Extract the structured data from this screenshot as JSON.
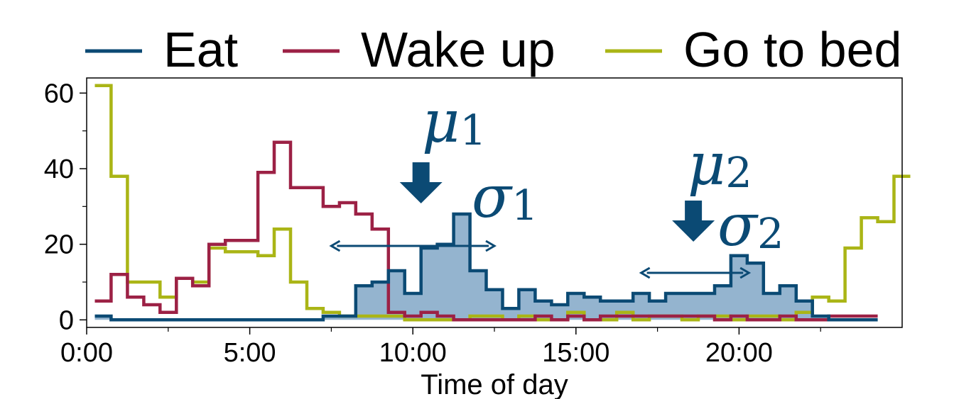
{
  "chart_data": {
    "type": "line",
    "xlabel": "Time of day",
    "ylabel": "",
    "xlim": [
      0,
      25
    ],
    "ylim": [
      -2,
      64
    ],
    "x_ticks": [
      0,
      5,
      10,
      15,
      20
    ],
    "x_tick_labels": [
      "0:00",
      "5:00",
      "10:00",
      "15:00",
      "20:00"
    ],
    "y_ticks": [
      0,
      20,
      40,
      60
    ],
    "y_tick_labels": [
      "0",
      "20",
      "40",
      "60"
    ],
    "grid": false,
    "legend_position": "top",
    "step_width_hours": 0.5,
    "series": [
      {
        "name": "Eat",
        "color": "#0b4a74",
        "fill": "#94b4cf",
        "values": [
          1,
          0,
          0,
          0,
          0,
          0,
          0,
          0,
          0,
          0,
          0,
          0,
          0,
          0,
          1,
          1,
          9,
          10,
          13,
          7,
          19,
          20,
          28,
          13,
          8,
          3,
          8,
          5,
          4,
          7,
          6,
          5,
          5,
          7,
          5,
          7,
          7,
          7,
          9,
          17,
          15,
          7,
          9,
          5,
          1,
          0,
          0,
          0
        ]
      },
      {
        "name": "Wake up",
        "color": "#9c2145",
        "values": [
          5,
          12,
          6,
          4,
          2,
          11,
          9,
          20,
          21,
          21,
          39,
          47,
          35,
          35,
          30,
          31,
          28,
          24,
          2,
          1,
          2,
          1,
          0,
          0,
          0,
          0,
          0,
          1,
          0,
          1,
          0,
          1,
          1,
          1,
          1,
          1,
          1,
          1,
          0,
          1,
          0,
          0,
          1,
          0,
          0,
          1,
          1,
          1
        ]
      },
      {
        "name": "Go to bed",
        "color": "#aab516",
        "values": [
          62,
          38,
          10,
          10,
          6,
          11,
          10,
          19,
          18,
          18,
          17,
          24,
          10,
          3,
          2,
          1,
          1,
          1,
          1,
          0,
          0,
          0,
          0,
          1,
          1,
          0,
          1,
          0,
          0,
          2,
          0,
          0,
          2,
          0,
          1,
          1,
          0,
          1,
          1,
          0,
          1,
          1,
          0,
          2,
          6,
          5,
          19,
          27,
          26,
          38
        ]
      }
    ],
    "annotations": [
      {
        "label": "μ",
        "sub": "1",
        "kind": "mean",
        "x": 10.25,
        "value": 20
      },
      {
        "label": "σ",
        "sub": "1",
        "kind": "std",
        "x_from": 7.5,
        "x_to": 12.5,
        "value": 20
      },
      {
        "label": "μ",
        "sub": "2",
        "kind": "mean",
        "x": 18.6,
        "value": 17
      },
      {
        "label": "σ",
        "sub": "2",
        "kind": "std",
        "x_from": 17.0,
        "x_to": 20.3,
        "value": 13
      }
    ]
  }
}
